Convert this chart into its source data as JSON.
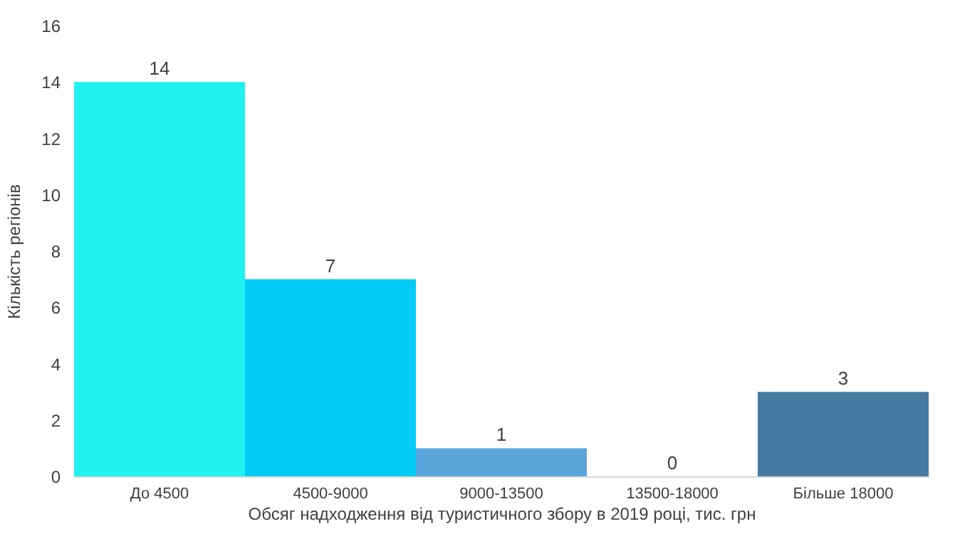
{
  "chart_data": {
    "type": "bar",
    "categories": [
      "До 4500",
      "4500-9000",
      "9000-13500",
      "13500-18000",
      "Більше 18000"
    ],
    "values": [
      14,
      7,
      1,
      0,
      3
    ],
    "colors": [
      "#1ff2f0",
      "#00ccf5",
      "#5aa5dc",
      "#5b8fc0",
      "#467aa0"
    ],
    "xlabel": "Обсяг надходження від туристичного збору в 2019 році, тис. грн",
    "ylabel": "Кількість регіонів",
    "ylim": [
      0,
      16
    ],
    "yticks": [
      0,
      2,
      4,
      6,
      8,
      10,
      12,
      14,
      16
    ],
    "data_labels": true,
    "grid": false
  }
}
